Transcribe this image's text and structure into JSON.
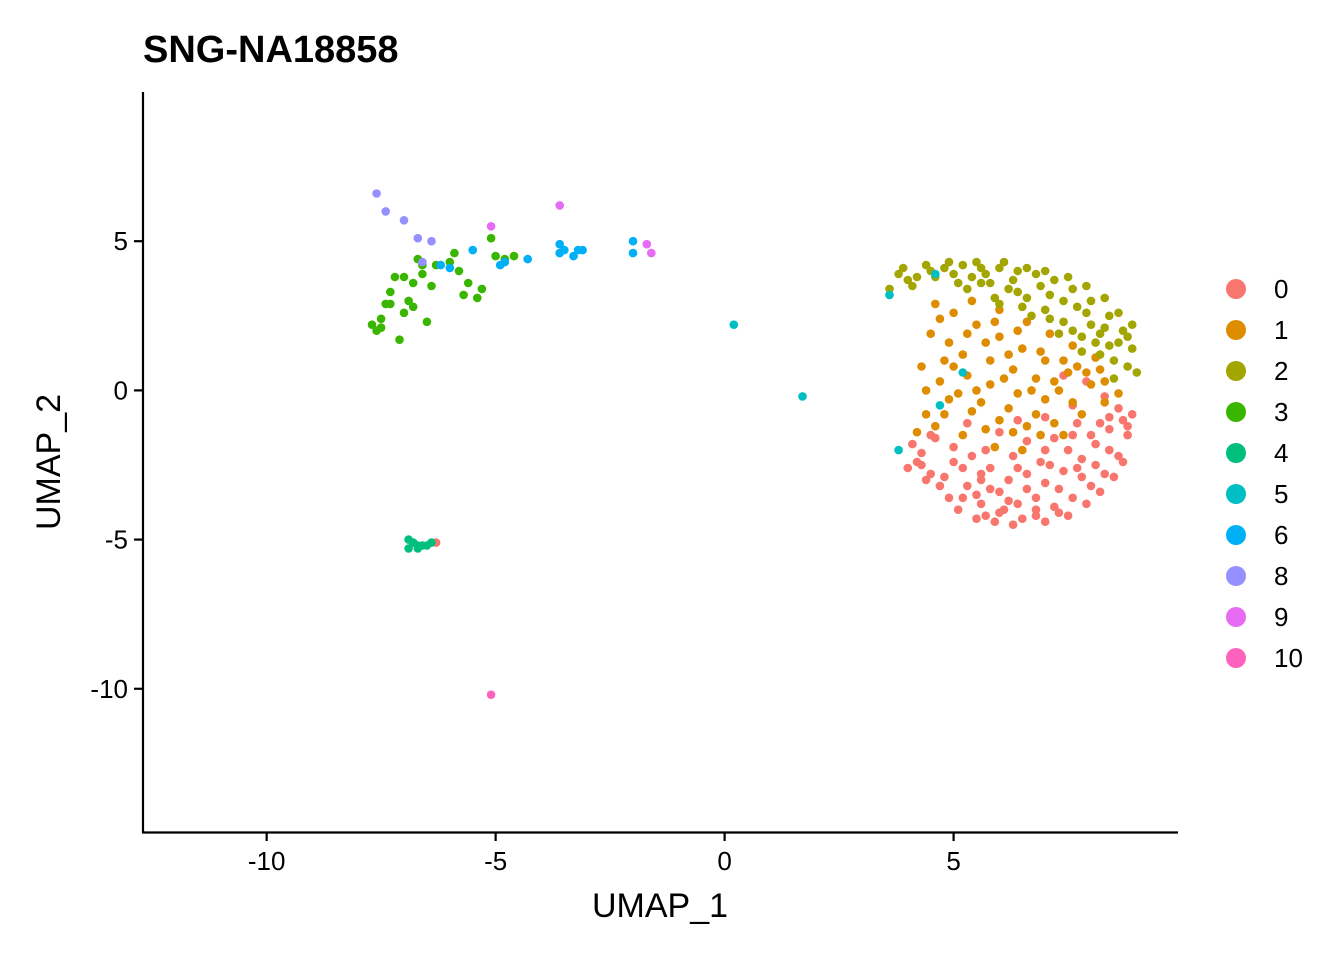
{
  "chart_data": {
    "type": "scatter",
    "title": "SNG-NA18858",
    "xlabel": "UMAP_1",
    "ylabel": "UMAP_2",
    "xlim": [
      -12.7,
      9.9
    ],
    "ylim": [
      -14.8,
      10.0
    ],
    "x_ticks": [
      -10,
      -5,
      0,
      5
    ],
    "x_tick_labels": [
      "-10",
      "-5",
      "0",
      "5"
    ],
    "y_ticks": [
      -10,
      -5,
      0,
      5
    ],
    "y_tick_labels": [
      "-10",
      "-5",
      "0",
      "5"
    ],
    "grid": false,
    "legend_position": "right",
    "series": [
      {
        "name": "0",
        "color": "#F8766D",
        "points": [
          [
            5.2,
            -2.6
          ],
          [
            5.6,
            -3.0
          ],
          [
            6.0,
            -3.4
          ],
          [
            6.4,
            -3.8
          ],
          [
            6.8,
            -4.0
          ],
          [
            7.2,
            -3.9
          ],
          [
            7.6,
            -3.6
          ],
          [
            8.0,
            -3.2
          ],
          [
            8.3,
            -2.8
          ],
          [
            8.6,
            -2.2
          ],
          [
            8.8,
            -1.5
          ],
          [
            8.7,
            -1.0
          ],
          [
            8.4,
            -1.3
          ],
          [
            8.1,
            -1.8
          ],
          [
            7.8,
            -2.3
          ],
          [
            7.4,
            -2.7
          ],
          [
            7.0,
            -3.1
          ],
          [
            6.6,
            -3.3
          ],
          [
            6.2,
            -3.0
          ],
          [
            5.8,
            -2.6
          ],
          [
            5.4,
            -2.2
          ],
          [
            5.5,
            -3.5
          ],
          [
            6.0,
            -4.1
          ],
          [
            6.5,
            -4.3
          ],
          [
            7.0,
            -4.4
          ],
          [
            7.5,
            -4.2
          ],
          [
            7.9,
            -3.8
          ],
          [
            8.2,
            -3.4
          ],
          [
            8.5,
            -2.9
          ],
          [
            8.7,
            -2.4
          ],
          [
            6.3,
            -4.5
          ],
          [
            5.9,
            -4.4
          ],
          [
            5.5,
            -4.3
          ],
          [
            5.1,
            -4.0
          ],
          [
            4.9,
            -3.6
          ],
          [
            4.7,
            -3.2
          ],
          [
            4.5,
            -2.8
          ],
          [
            4.3,
            -2.5
          ],
          [
            4.1,
            -1.8
          ],
          [
            4.6,
            -1.6
          ],
          [
            5.0,
            -1.9
          ],
          [
            5.7,
            -2.0
          ],
          [
            6.3,
            -2.2
          ],
          [
            6.9,
            -2.4
          ],
          [
            7.5,
            -2.0
          ],
          [
            8.0,
            -1.5
          ],
          [
            8.4,
            -0.9
          ],
          [
            8.6,
            -0.6
          ],
          [
            7.7,
            -1.1
          ],
          [
            7.2,
            -1.6
          ],
          [
            6.6,
            -1.7
          ],
          [
            6.0,
            -1.4
          ],
          [
            5.3,
            -1.1
          ],
          [
            4.5,
            -1.5
          ],
          [
            4.3,
            -2.1
          ],
          [
            8.9,
            -0.8
          ],
          [
            8.3,
            -0.2
          ],
          [
            7.6,
            -0.5
          ],
          [
            7.0,
            -0.9
          ],
          [
            6.4,
            -1.0
          ],
          [
            5.6,
            -3.8
          ],
          [
            6.2,
            -3.7
          ],
          [
            6.8,
            -3.6
          ],
          [
            7.3,
            -3.3
          ],
          [
            7.8,
            -2.9
          ],
          [
            8.1,
            -2.5
          ],
          [
            5.0,
            -2.4
          ],
          [
            5.3,
            -3.2
          ],
          [
            5.8,
            -3.3
          ],
          [
            6.6,
            -2.8
          ],
          [
            7.1,
            -2.5
          ],
          [
            7.7,
            -2.6
          ],
          [
            8.4,
            -2.0
          ],
          [
            8.8,
            -1.2
          ],
          [
            7.9,
            0.3
          ],
          [
            7.4,
            0.5
          ],
          [
            6.8,
            -4.2
          ],
          [
            6.1,
            -4.0
          ],
          [
            5.7,
            -4.2
          ],
          [
            7.3,
            -4.1
          ],
          [
            4.2,
            -2.4
          ],
          [
            4.0,
            -2.6
          ],
          [
            4.4,
            -3.0
          ],
          [
            4.8,
            -2.9
          ],
          [
            5.2,
            -3.6
          ],
          [
            5.6,
            -2.8
          ],
          [
            6.4,
            -2.6
          ],
          [
            7.0,
            -2.0
          ],
          [
            7.6,
            -1.5
          ],
          [
            8.2,
            -1.1
          ],
          [
            -6.3,
            -5.1
          ]
        ]
      },
      {
        "name": "1",
        "color": "#DE8C00",
        "points": [
          [
            5.0,
            2.6
          ],
          [
            5.5,
            2.2
          ],
          [
            6.0,
            1.8
          ],
          [
            6.5,
            1.4
          ],
          [
            7.0,
            1.0
          ],
          [
            7.5,
            0.6
          ],
          [
            8.0,
            0.2
          ],
          [
            8.3,
            -0.4
          ],
          [
            7.8,
            -0.8
          ],
          [
            7.2,
            -1.1
          ],
          [
            6.6,
            -1.2
          ],
          [
            6.0,
            -1.0
          ],
          [
            5.4,
            -0.7
          ],
          [
            4.9,
            -0.3
          ],
          [
            4.7,
            0.3
          ],
          [
            4.8,
            1.0
          ],
          [
            4.9,
            1.6
          ],
          [
            5.2,
            1.2
          ],
          [
            5.8,
            1.0
          ],
          [
            6.3,
            0.7
          ],
          [
            6.8,
            0.4
          ],
          [
            7.3,
            0.0
          ],
          [
            7.6,
            -0.4
          ],
          [
            7.0,
            -0.3
          ],
          [
            6.4,
            -0.1
          ],
          [
            5.8,
            0.2
          ],
          [
            5.3,
            0.5
          ],
          [
            5.1,
            -0.1
          ],
          [
            5.6,
            -0.4
          ],
          [
            6.2,
            -0.6
          ],
          [
            6.8,
            -0.8
          ],
          [
            7.4,
            -1.5
          ],
          [
            6.9,
            -1.5
          ],
          [
            6.3,
            -1.4
          ],
          [
            5.7,
            -1.3
          ],
          [
            5.2,
            -1.5
          ],
          [
            4.6,
            -1.2
          ],
          [
            4.4,
            -0.8
          ],
          [
            4.4,
            0.0
          ],
          [
            4.3,
            0.8
          ],
          [
            4.5,
            1.9
          ],
          [
            4.6,
            2.9
          ],
          [
            5.4,
            3.0
          ],
          [
            6.0,
            2.7
          ],
          [
            6.6,
            2.3
          ],
          [
            7.1,
            1.9
          ],
          [
            7.6,
            1.5
          ],
          [
            8.1,
            1.1
          ],
          [
            6.2,
            1.2
          ],
          [
            5.7,
            1.6
          ],
          [
            5.3,
            1.9
          ],
          [
            6.9,
            1.3
          ],
          [
            7.4,
            1.0
          ],
          [
            7.9,
            0.6
          ],
          [
            8.3,
            0.3
          ],
          [
            8.6,
            -0.1
          ],
          [
            5.9,
            2.3
          ],
          [
            6.4,
            2.0
          ],
          [
            4.8,
            -0.8
          ],
          [
            5.9,
            -1.9
          ],
          [
            6.5,
            -2.0
          ],
          [
            4.2,
            -1.4
          ],
          [
            4.7,
            2.4
          ],
          [
            5.5,
            0.0
          ],
          [
            6.1,
            0.4
          ],
          [
            6.7,
            0.0
          ],
          [
            7.2,
            0.3
          ],
          [
            7.7,
            0.8
          ],
          [
            8.2,
            0.7
          ],
          [
            5.0,
            0.8
          ]
        ]
      },
      {
        "name": "2",
        "color": "#A3A500",
        "points": [
          [
            4.2,
            3.8
          ],
          [
            4.5,
            4.0
          ],
          [
            4.8,
            4.1
          ],
          [
            5.2,
            4.2
          ],
          [
            5.6,
            4.1
          ],
          [
            6.0,
            4.1
          ],
          [
            6.4,
            4.0
          ],
          [
            6.8,
            3.9
          ],
          [
            7.2,
            3.7
          ],
          [
            7.6,
            3.4
          ],
          [
            8.0,
            3.0
          ],
          [
            8.4,
            2.5
          ],
          [
            8.7,
            2.0
          ],
          [
            8.9,
            1.4
          ],
          [
            8.8,
            0.8
          ],
          [
            8.5,
            0.4
          ],
          [
            8.2,
            1.2
          ],
          [
            7.8,
            1.8
          ],
          [
            7.4,
            2.3
          ],
          [
            7.0,
            2.7
          ],
          [
            6.6,
            3.1
          ],
          [
            6.2,
            3.4
          ],
          [
            5.8,
            3.6
          ],
          [
            5.4,
            3.8
          ],
          [
            5.0,
            3.9
          ],
          [
            4.6,
            3.8
          ],
          [
            4.0,
            3.7
          ],
          [
            3.8,
            3.9
          ],
          [
            3.9,
            4.1
          ],
          [
            5.3,
            3.4
          ],
          [
            5.9,
            3.1
          ],
          [
            6.5,
            2.8
          ],
          [
            7.1,
            2.4
          ],
          [
            7.6,
            2.0
          ],
          [
            8.1,
            1.6
          ],
          [
            8.5,
            1.0
          ],
          [
            6.3,
            3.7
          ],
          [
            6.9,
            3.5
          ],
          [
            7.4,
            3.0
          ],
          [
            7.9,
            2.6
          ],
          [
            8.3,
            2.1
          ],
          [
            8.6,
            1.6
          ],
          [
            5.6,
            3.6
          ],
          [
            6.0,
            2.9
          ],
          [
            6.7,
            2.5
          ],
          [
            7.3,
            1.9
          ],
          [
            7.8,
            1.3
          ],
          [
            8.2,
            1.9
          ],
          [
            8.8,
            1.8
          ],
          [
            9.0,
            0.6
          ],
          [
            4.4,
            4.2
          ],
          [
            4.9,
            4.3
          ],
          [
            5.5,
            4.3
          ],
          [
            6.1,
            4.3
          ],
          [
            6.6,
            4.1
          ],
          [
            7.0,
            4.0
          ],
          [
            7.5,
            3.8
          ],
          [
            7.9,
            3.5
          ],
          [
            8.3,
            3.1
          ],
          [
            8.6,
            2.6
          ],
          [
            8.9,
            2.2
          ],
          [
            3.6,
            3.4
          ],
          [
            4.1,
            3.5
          ],
          [
            5.1,
            3.6
          ],
          [
            5.7,
            3.9
          ],
          [
            6.4,
            3.3
          ],
          [
            7.1,
            3.2
          ],
          [
            7.7,
            2.8
          ],
          [
            8.0,
            2.2
          ],
          [
            8.4,
            1.5
          ]
        ]
      },
      {
        "name": "3",
        "color": "#39B600",
        "points": [
          [
            -7.7,
            2.2
          ],
          [
            -7.6,
            2.0
          ],
          [
            -7.5,
            2.4
          ],
          [
            -7.4,
            2.9
          ],
          [
            -7.3,
            3.3
          ],
          [
            -7.2,
            3.8
          ],
          [
            -7.1,
            1.7
          ],
          [
            -7.0,
            2.6
          ],
          [
            -6.9,
            3.0
          ],
          [
            -6.8,
            3.6
          ],
          [
            -6.7,
            4.4
          ],
          [
            -6.6,
            3.9
          ],
          [
            -6.5,
            2.3
          ],
          [
            -6.4,
            3.5
          ],
          [
            -6.3,
            4.2
          ],
          [
            -6.0,
            4.3
          ],
          [
            -5.9,
            4.6
          ],
          [
            -5.8,
            4.0
          ],
          [
            -5.7,
            3.2
          ],
          [
            -5.6,
            3.6
          ],
          [
            -5.4,
            3.1
          ],
          [
            -5.3,
            3.4
          ],
          [
            -5.1,
            5.1
          ],
          [
            -5.0,
            4.5
          ],
          [
            -4.8,
            4.4
          ],
          [
            -4.6,
            4.5
          ],
          [
            -7.0,
            3.8
          ],
          [
            -6.8,
            2.8
          ],
          [
            -7.3,
            2.9
          ],
          [
            -6.6,
            4.2
          ],
          [
            -7.5,
            2.1
          ]
        ]
      },
      {
        "name": "4",
        "color": "#00BF7D",
        "points": [
          [
            -6.9,
            -5.3
          ],
          [
            -6.8,
            -5.1
          ],
          [
            -6.7,
            -5.2
          ],
          [
            -6.6,
            -5.2
          ],
          [
            -6.5,
            -5.2
          ],
          [
            -6.4,
            -5.1
          ],
          [
            -6.9,
            -5.0
          ],
          [
            -6.7,
            -5.3
          ]
        ]
      },
      {
        "name": "5",
        "color": "#00BFC4",
        "points": [
          [
            0.2,
            2.2
          ],
          [
            1.7,
            -0.2
          ],
          [
            3.6,
            3.2
          ],
          [
            3.8,
            -2.0
          ],
          [
            4.7,
            -0.5
          ],
          [
            4.6,
            3.9
          ],
          [
            5.2,
            0.6
          ]
        ]
      },
      {
        "name": "6",
        "color": "#00B0F6",
        "points": [
          [
            -6.2,
            4.2
          ],
          [
            -6.0,
            4.1
          ],
          [
            -5.5,
            4.7
          ],
          [
            -4.9,
            4.2
          ],
          [
            -4.8,
            4.3
          ],
          [
            -4.3,
            4.4
          ],
          [
            -3.6,
            4.6
          ],
          [
            -3.6,
            4.9
          ],
          [
            -3.5,
            4.7
          ],
          [
            -3.3,
            4.5
          ],
          [
            -3.2,
            4.7
          ],
          [
            -2.0,
            5.0
          ],
          [
            -2.0,
            4.6
          ],
          [
            -3.1,
            4.7
          ]
        ]
      },
      {
        "name": "8",
        "color": "#9590FF",
        "points": [
          [
            -7.6,
            6.6
          ],
          [
            -7.4,
            6.0
          ],
          [
            -7.0,
            5.7
          ],
          [
            -6.7,
            5.1
          ],
          [
            -6.4,
            5.0
          ],
          [
            -6.6,
            4.3
          ]
        ]
      },
      {
        "name": "9",
        "color": "#E76BF3",
        "points": [
          [
            -5.1,
            5.5
          ],
          [
            -3.6,
            6.2
          ],
          [
            -1.7,
            4.9
          ],
          [
            -1.6,
            4.6
          ]
        ]
      },
      {
        "name": "10",
        "color": "#FF62BC",
        "points": [
          [
            -5.1,
            -10.2
          ]
        ]
      }
    ]
  }
}
